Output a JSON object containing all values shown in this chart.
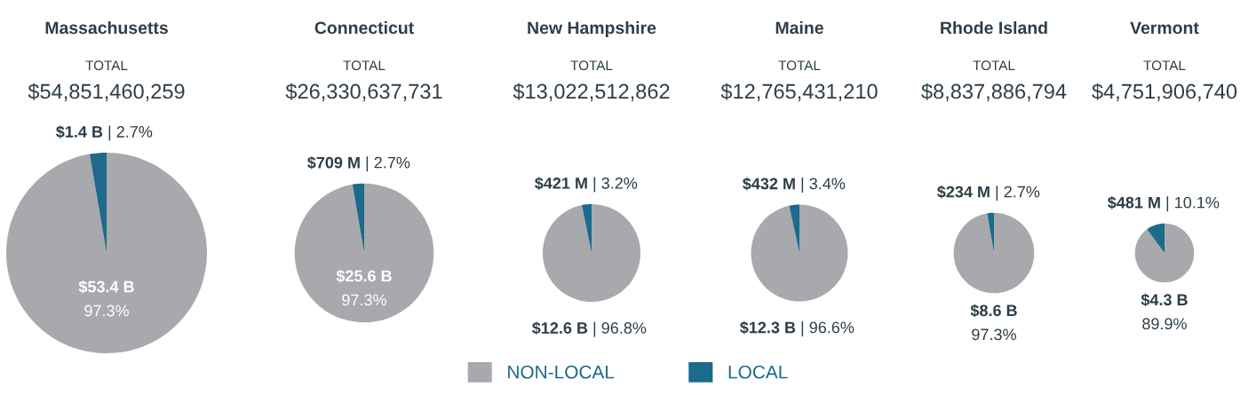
{
  "chart_data": [
    {
      "type": "pie",
      "title": "Massachusetts",
      "subtitle": "TOTAL",
      "annotations": [
        "$54,851,460,259"
      ],
      "categories": [
        "NON-LOCAL",
        "LOCAL"
      ],
      "values": [
        97.3,
        2.7
      ],
      "value_labels": [
        "$53.4 B\n97.3%",
        "$1.4 B | 2.7%"
      ],
      "colors": [
        "#a7a9ac",
        "#1d6a8a"
      ],
      "legend": "bottom"
    },
    {
      "type": "pie",
      "title": "Connecticut",
      "subtitle": "TOTAL",
      "annotations": [
        "$26,330,637,731"
      ],
      "categories": [
        null,
        null
      ],
      "values": [
        97.3,
        2.7
      ],
      "value_labels": [
        "$25.6 B\n97.3%",
        "$709 M | 2.7%"
      ],
      "colors": [
        "#a7a9ac",
        "#1d6a8a"
      ]
    },
    {
      "type": "pie",
      "title": "New Hampshire",
      "subtitle": "TOTAL",
      "annotations": [
        "$13,022,512,862"
      ],
      "categories": [
        null,
        null
      ],
      "values": [
        96.8,
        3.2
      ],
      "value_labels": [
        "$12.6 B | 96.8%",
        "$421 M | 3.2%"
      ],
      "colors": [
        "#a7a9ac",
        "#1d6a8a"
      ]
    },
    {
      "type": "pie",
      "title": "Maine",
      "subtitle": "TOTAL",
      "annotations": [
        "$12,765,431,210"
      ],
      "categories": [
        null,
        null
      ],
      "values": [
        96.6,
        3.4
      ],
      "value_labels": [
        "$12.3 B | 96.6%",
        "$432 M | 3.4%"
      ],
      "colors": [
        "#a7a9ac",
        "#1d6a8a"
      ]
    },
    {
      "type": "pie",
      "title": "Rhode Island",
      "subtitle": "TOTAL",
      "annotations": [
        "$8,837,886,794"
      ],
      "categories": [
        null,
        null
      ],
      "values": [
        97.3,
        2.7
      ],
      "value_labels": [
        "$8.6 B\n97.3%",
        "$234 M | 2.7%"
      ],
      "colors": [
        "#a7a9ac",
        "#1d6a8a"
      ]
    },
    {
      "type": "pie",
      "title": "Vermont",
      "subtitle": "TOTAL",
      "annotations": [
        "$4,751,906,740"
      ],
      "categories": [
        null,
        null
      ],
      "values": [
        89.9,
        10.1
      ],
      "value_labels": [
        "$4.3 B\n89.9%",
        "$481 M | 10.1%"
      ],
      "colors": [
        "#a7a9ac",
        "#1d6a8a"
      ]
    }
  ]
}
